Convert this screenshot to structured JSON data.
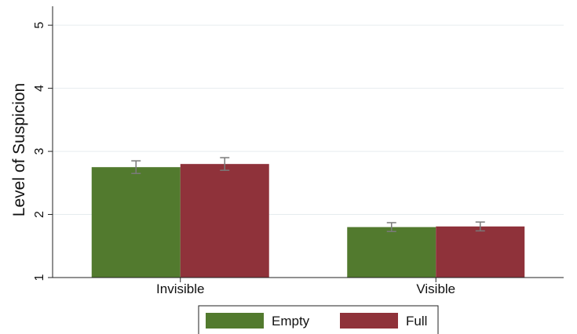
{
  "chart_data": {
    "type": "bar",
    "title": "",
    "xlabel": "",
    "ylabel": "Level of Suspicion",
    "ylim": [
      1,
      5.3
    ],
    "yticks": [
      1,
      2,
      3,
      4,
      5
    ],
    "grid": true,
    "legend_position": "bottom",
    "categories": [
      "Invisible",
      "Visible"
    ],
    "series": [
      {
        "name": "Empty",
        "color": "#527a2e",
        "values": [
          2.75,
          1.8
        ],
        "error": [
          0.1,
          0.07
        ]
      },
      {
        "name": "Full",
        "color": "#8f323a",
        "values": [
          2.8,
          1.81
        ],
        "error": [
          0.1,
          0.07
        ]
      }
    ]
  }
}
